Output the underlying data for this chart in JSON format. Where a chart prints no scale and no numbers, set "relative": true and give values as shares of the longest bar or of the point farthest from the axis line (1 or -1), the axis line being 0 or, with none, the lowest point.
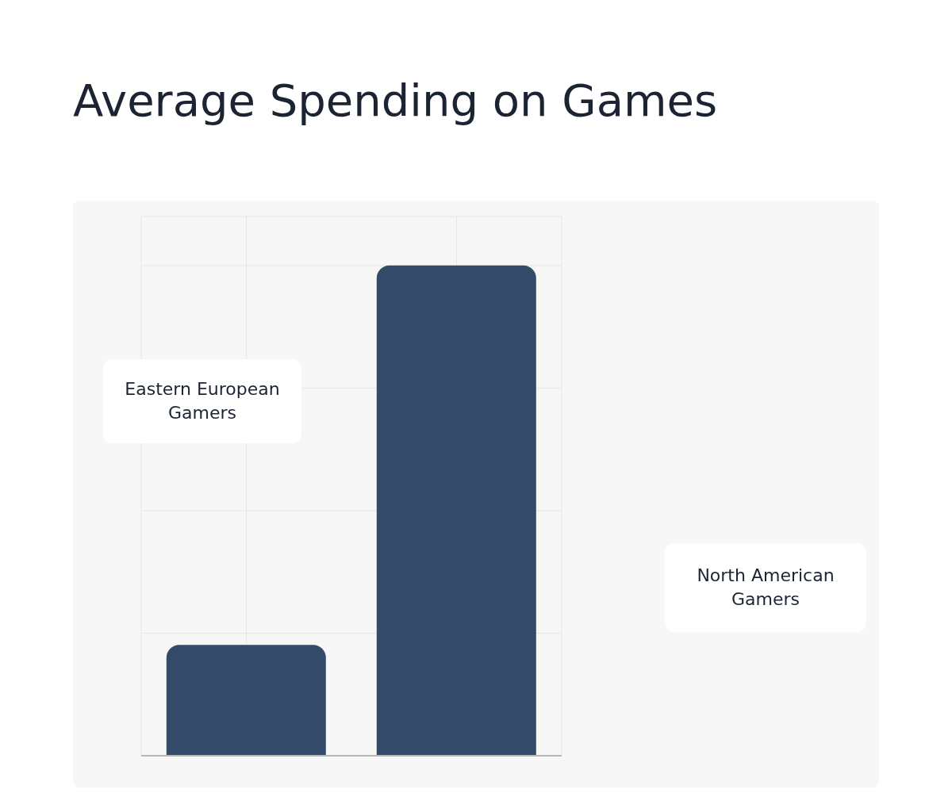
{
  "chart_data": {
    "type": "bar",
    "title": "Average Spending on Games",
    "categories": [
      null,
      null
    ],
    "values": [
      0.226,
      1
    ],
    "color": "#344a69",
    "relative": true,
    "grid": true,
    "annotations": [
      "Eastern European Gamers",
      "North American Gamers"
    ]
  }
}
